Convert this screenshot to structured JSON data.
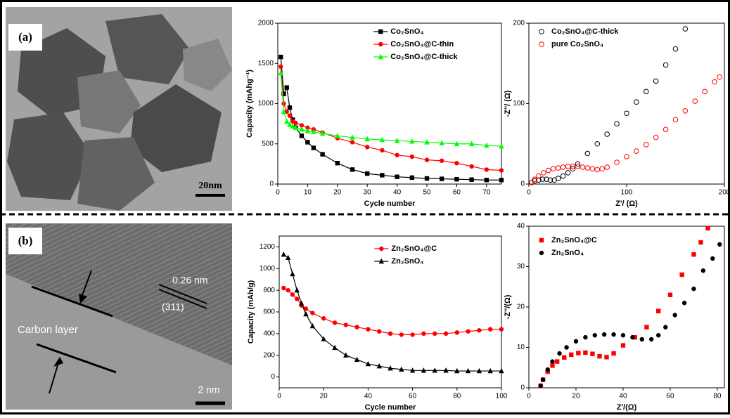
{
  "images": [
    {
      "panel_label": "(a)",
      "scale_bar": "20nm"
    },
    {
      "panel_label": "(b)",
      "annotations": [
        "0.26 nm",
        "(311)",
        "Carbon layer"
      ],
      "scale_bar": "2 nm"
    }
  ],
  "chart_data": [
    {
      "type": "line",
      "x_label": "Cycle number",
      "y_label": "Capacity (mAhg⁻¹)",
      "x": [
        1,
        2,
        3,
        4,
        5,
        6,
        8,
        10,
        12,
        15,
        20,
        25,
        30,
        35,
        40,
        45,
        50,
        55,
        60,
        65,
        70,
        75
      ],
      "xlim": [
        0,
        75
      ],
      "xticks": [
        0,
        10,
        20,
        30,
        40,
        50,
        60,
        70
      ],
      "ylim": [
        0,
        2000
      ],
      "yticks": [
        0,
        500,
        1000,
        1500,
        2000
      ],
      "legend": "upper right",
      "series": [
        {
          "name": "Co₂SnO₄",
          "color": "#000000",
          "marker": "square",
          "values": [
            1580,
            1120,
            1200,
            950,
            800,
            700,
            600,
            520,
            450,
            370,
            260,
            180,
            130,
            110,
            90,
            80,
            70,
            65,
            60,
            55,
            50,
            50
          ]
        },
        {
          "name": "Co₂SnO₄@C-thin",
          "color": "#ff0000",
          "marker": "circle",
          "values": [
            1460,
            1000,
            900,
            850,
            780,
            760,
            730,
            700,
            680,
            640,
            570,
            520,
            460,
            420,
            360,
            340,
            300,
            290,
            260,
            220,
            180,
            170
          ]
        },
        {
          "name": "Co₂SnO₄@C-thick",
          "color": "#00ff00",
          "marker": "triangle",
          "values": [
            1380,
            900,
            780,
            740,
            720,
            700,
            680,
            660,
            650,
            630,
            600,
            580,
            560,
            550,
            540,
            530,
            520,
            510,
            500,
            500,
            480,
            470
          ]
        }
      ]
    },
    {
      "type": "scatter",
      "x_label": "Z'/ (Ω)",
      "y_label": "-Z''/ (Ω)",
      "xlim": [
        0,
        200
      ],
      "xticks": [
        0,
        100,
        200
      ],
      "ylim": [
        0,
        200
      ],
      "yticks": [
        0,
        100,
        200
      ],
      "legend": "upper left",
      "series": [
        {
          "name": "Co₂SnO₄@C-thick",
          "color": "#000000",
          "marker": "open-circle",
          "x": [
            3,
            6,
            10,
            14,
            18,
            22,
            26,
            30,
            35,
            40,
            45,
            50,
            60,
            70,
            80,
            90,
            100,
            110,
            120,
            130,
            140,
            150,
            160
          ],
          "values": [
            2,
            4,
            5,
            6,
            6,
            5,
            5,
            7,
            10,
            14,
            19,
            25,
            38,
            50,
            62,
            75,
            88,
            102,
            115,
            128,
            148,
            168,
            193
          ]
        },
        {
          "name": "pure Co₂SnO₄",
          "color": "#ff0000",
          "marker": "open-circle",
          "x": [
            3,
            6,
            10,
            15,
            20,
            25,
            30,
            35,
            40,
            45,
            50,
            55,
            60,
            65,
            70,
            75,
            80,
            90,
            100,
            110,
            120,
            130,
            140,
            150,
            160,
            170,
            180,
            190,
            195
          ],
          "values": [
            2,
            6,
            10,
            14,
            17,
            19,
            20,
            21,
            22,
            22,
            22,
            21,
            20,
            19,
            18,
            19,
            21,
            27,
            34,
            41,
            49,
            58,
            68,
            80,
            91,
            103,
            115,
            127,
            133
          ]
        }
      ]
    },
    {
      "type": "line",
      "x_label": "Cycle number",
      "y_label": "Capacity (mAh/g)",
      "x": [
        2,
        4,
        6,
        8,
        10,
        12,
        15,
        20,
        25,
        30,
        35,
        40,
        45,
        50,
        55,
        60,
        65,
        70,
        75,
        80,
        85,
        90,
        95,
        100
      ],
      "xlim": [
        0,
        100
      ],
      "xticks": [
        0,
        20,
        40,
        60,
        80,
        100
      ],
      "ylim": [
        -100,
        1300
      ],
      "yticks": [
        0,
        200,
        400,
        600,
        800,
        1000,
        1200
      ],
      "legend": "upper right",
      "series": [
        {
          "name": "Zn₂SnO₄@C",
          "color": "#ff0000",
          "marker": "circle",
          "values": [
            820,
            800,
            760,
            720,
            660,
            630,
            590,
            540,
            500,
            480,
            460,
            440,
            420,
            400,
            390,
            390,
            400,
            400,
            400,
            410,
            420,
            430,
            440,
            440
          ]
        },
        {
          "name": "Zn₂SnO₄",
          "color": "#000000",
          "marker": "triangle",
          "values": [
            1130,
            1100,
            950,
            800,
            680,
            580,
            470,
            350,
            270,
            200,
            160,
            120,
            100,
            80,
            70,
            60,
            60,
            60,
            60,
            55,
            55,
            55,
            55,
            55
          ]
        }
      ]
    },
    {
      "type": "scatter",
      "x_label": "Z'/(Ω)",
      "y_label": "-Z''/(Ω)",
      "xlim": [
        0,
        83
      ],
      "xticks": [
        0,
        20,
        40,
        60,
        80
      ],
      "ylim": [
        0,
        40
      ],
      "yticks": [
        0,
        10,
        20,
        30,
        40
      ],
      "legend": "upper left",
      "series": [
        {
          "name": "Zn₂SnO₄@C",
          "color": "#ff0000",
          "marker": "square",
          "x": [
            5,
            6,
            8,
            10,
            12,
            15,
            18,
            21,
            24,
            27,
            30,
            33,
            36,
            40,
            45,
            50,
            55,
            60,
            65,
            70,
            73,
            76
          ],
          "values": [
            0.5,
            2,
            4,
            5.5,
            6.5,
            7.5,
            8.2,
            8.6,
            8.7,
            8.4,
            7.8,
            7.6,
            8.5,
            10.5,
            12.5,
            15,
            19,
            23,
            28,
            33,
            36,
            39.5
          ]
        },
        {
          "name": "Zn₂SnO₄",
          "color": "#000000",
          "marker": "circle",
          "x": [
            5,
            6,
            8,
            10,
            13,
            16,
            20,
            24,
            28,
            32,
            36,
            40,
            44,
            48,
            52,
            55,
            58,
            62,
            66,
            70,
            74,
            78,
            81
          ],
          "values": [
            0.5,
            2,
            4.5,
            6.5,
            8.5,
            10,
            11.5,
            12.5,
            13,
            13.2,
            13.2,
            13,
            12.5,
            12,
            12,
            13,
            15,
            18,
            21,
            24.5,
            29,
            32,
            35.5
          ]
        }
      ]
    }
  ]
}
